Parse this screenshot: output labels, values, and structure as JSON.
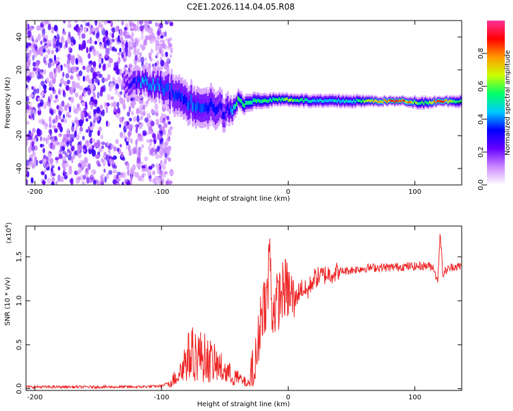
{
  "title": "C2E1.2026.114.04.05.R08",
  "chart_data": [
    {
      "type": "heatmap",
      "name": "spectrogram",
      "xlabel": "Height of straight line (km)",
      "ylabel": "Frequency (Hz)",
      "xlim": [
        -207,
        137
      ],
      "ylim": [
        -50,
        50
      ],
      "xticks": [
        -200,
        -100,
        0,
        100
      ],
      "yticks": [
        -40,
        -20,
        0,
        20,
        40
      ],
      "colorbar": {
        "label": "Normalized spectral amplitude",
        "range": [
          0,
          1
        ],
        "ticks": [
          "0.0",
          "0.2",
          "0.4",
          "0.6",
          "0.8"
        ],
        "tick_values": [
          0.0,
          0.2,
          0.4,
          0.6,
          0.8
        ],
        "colors": [
          "#ffffff",
          "#cc88ff",
          "#6600ff",
          "#0000ff",
          "#00ccff",
          "#00ff66",
          "#ccff00",
          "#ff9900",
          "#ff0000",
          "#ff3399"
        ]
      },
      "noise_region_x": [
        -207,
        -100
      ],
      "ridge": [
        {
          "x": -130,
          "freq": 12,
          "amp": 0.2,
          "width": 8
        },
        {
          "x": -115,
          "freq": 12,
          "amp": 0.45,
          "width": 8
        },
        {
          "x": -100,
          "freq": 10,
          "amp": 0.4,
          "width": 10
        },
        {
          "x": -90,
          "freq": 5,
          "amp": 0.35,
          "width": 12
        },
        {
          "x": -75,
          "freq": -1,
          "amp": 0.4,
          "width": 12
        },
        {
          "x": -60,
          "freq": -2,
          "amp": 0.35,
          "width": 12
        },
        {
          "x": -50,
          "freq": -6,
          "amp": 0.3,
          "width": 10
        },
        {
          "x": -40,
          "freq": 0,
          "amp": 0.6,
          "width": 6
        },
        {
          "x": -25,
          "freq": 1,
          "amp": 0.55,
          "width": 5
        },
        {
          "x": -10,
          "freq": 2,
          "amp": 0.6,
          "width": 4
        },
        {
          "x": 0,
          "freq": 2,
          "amp": 0.65,
          "width": 4
        },
        {
          "x": 20,
          "freq": 1,
          "amp": 0.5,
          "width": 4
        },
        {
          "x": 50,
          "freq": 1,
          "amp": 0.5,
          "width": 4
        },
        {
          "x": 75,
          "freq": 1,
          "amp": 0.85,
          "width": 3
        },
        {
          "x": 90,
          "freq": 1,
          "amp": 0.9,
          "width": 3
        },
        {
          "x": 105,
          "freq": 0,
          "amp": 0.55,
          "width": 4
        },
        {
          "x": 120,
          "freq": 1,
          "amp": 0.9,
          "width": 3
        },
        {
          "x": 137,
          "freq": 1,
          "amp": 0.5,
          "width": 4
        }
      ]
    },
    {
      "type": "line",
      "name": "snr",
      "xlabel": "Height of straight line (km)",
      "ylabel": "SNR (10 * v/v)",
      "yscale_label": "(x10",
      "yscale_exponent": "4",
      "yscale_close": ")",
      "xlim": [
        -207,
        137
      ],
      "ylim": [
        -0.02,
        1.85
      ],
      "xticks": [
        -200,
        -100,
        0,
        100
      ],
      "yticks": [
        "0.0",
        "0.5",
        "1.0",
        "1.5"
      ],
      "ytick_values": [
        0.0,
        0.5,
        1.0,
        1.5
      ],
      "color": "#ee2222",
      "series": [
        {
          "name": "SNR",
          "x": [
            -207,
            -180,
            -150,
            -120,
            -100,
            -92,
            -85,
            -80,
            -75,
            -70,
            -65,
            -60,
            -55,
            -50,
            -45,
            -40,
            -35,
            -30,
            -27,
            -24,
            -22,
            -20,
            -18,
            -16,
            -15,
            -13,
            -10,
            -8,
            -5,
            -2,
            0,
            5,
            10,
            15,
            20,
            25,
            30,
            40,
            50,
            60,
            70,
            80,
            90,
            100,
            110,
            115,
            118,
            120,
            122,
            125,
            130,
            137
          ],
          "y": [
            0.02,
            0.02,
            0.02,
            0.02,
            0.03,
            0.08,
            0.2,
            0.35,
            0.4,
            0.38,
            0.35,
            0.3,
            0.25,
            0.2,
            0.15,
            0.12,
            0.08,
            0.05,
            0.15,
            0.45,
            0.8,
            0.95,
            1.0,
            1.05,
            1.75,
            0.9,
            0.95,
            1.0,
            1.1,
            1.15,
            1.1,
            1.0,
            1.15,
            1.1,
            1.25,
            1.28,
            1.3,
            1.33,
            1.35,
            1.37,
            1.38,
            1.38,
            1.39,
            1.39,
            1.4,
            1.38,
            1.2,
            1.8,
            1.3,
            1.35,
            1.39,
            1.39
          ]
        }
      ]
    }
  ]
}
